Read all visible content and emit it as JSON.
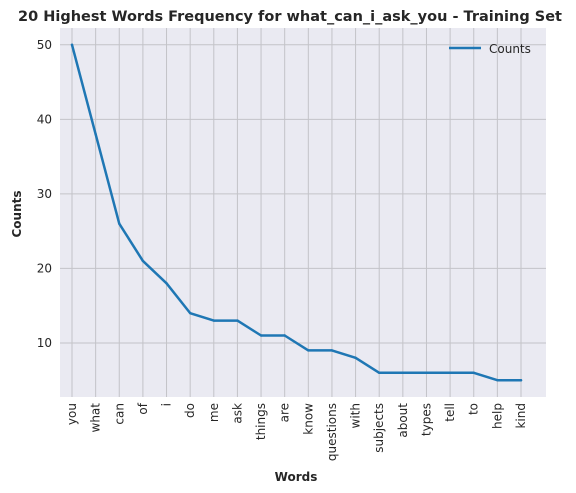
{
  "chart_data": {
    "type": "line",
    "title": "20 Highest Words Frequency for what_can_i_ask_you - Training Set",
    "xlabel": "Words",
    "ylabel": "Counts",
    "categories": [
      "you",
      "what",
      "can",
      "of",
      "i",
      "do",
      "me",
      "ask",
      "things",
      "are",
      "know",
      "questions",
      "with",
      "subjects",
      "about",
      "types",
      "tell",
      "to",
      "help",
      "kind"
    ],
    "series": [
      {
        "name": "Counts",
        "values": [
          50,
          38,
          26,
          21,
          18,
          14,
          13,
          13,
          11,
          11,
          9,
          9,
          8,
          6,
          6,
          6,
          6,
          6,
          5,
          5
        ]
      }
    ],
    "ylim": [
      2.75,
      52.25
    ],
    "yticks": [
      10,
      20,
      30,
      40,
      50
    ],
    "grid": true,
    "legend_position": "top-right",
    "colors": {
      "line": "#1f77b4",
      "plot_background": "#eaeaf2",
      "grid": "#c3c3c8"
    }
  }
}
